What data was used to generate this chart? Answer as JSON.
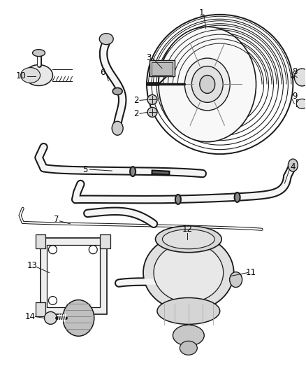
{
  "background_color": "#ffffff",
  "line_color": "#1a1a1a",
  "text_color": "#000000",
  "fig_width": 4.38,
  "fig_height": 5.33,
  "dpi": 100
}
